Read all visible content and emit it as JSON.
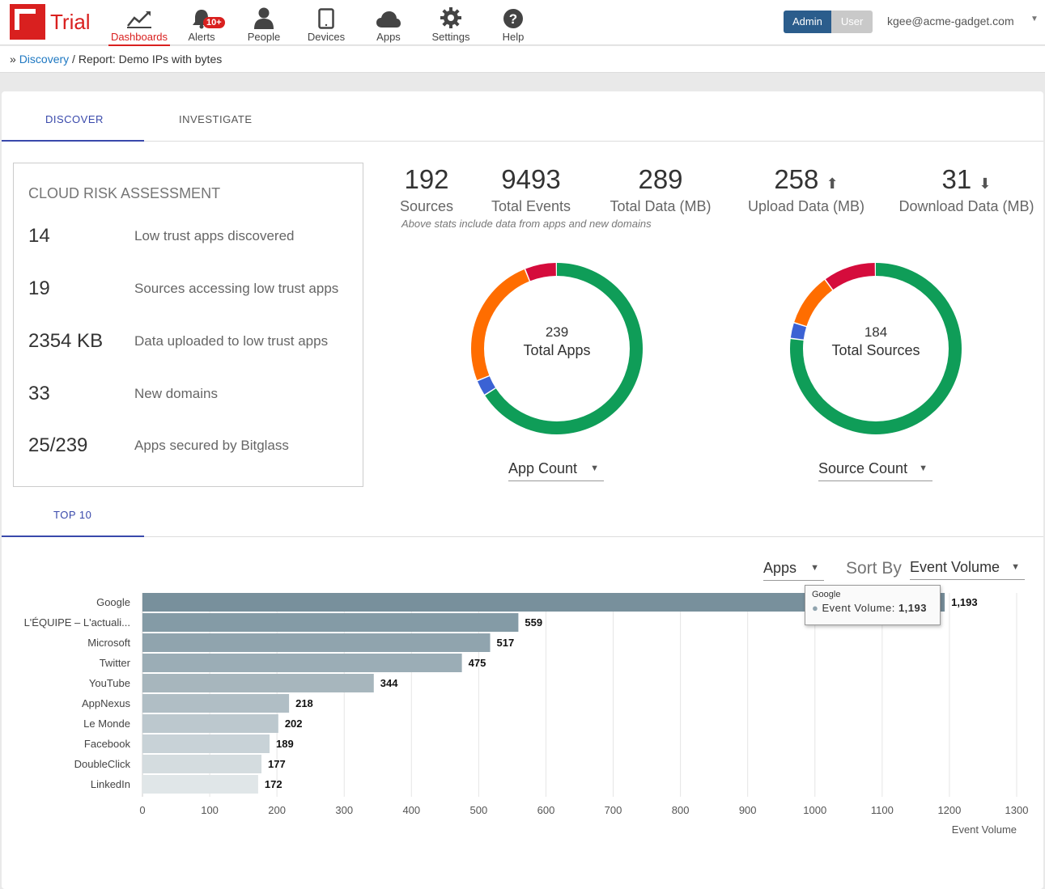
{
  "app": {
    "logo_text": "Trial"
  },
  "nav": {
    "items": [
      {
        "label": "Dashboards",
        "icon": "chart-line-icon"
      },
      {
        "label": "Alerts",
        "icon": "bell-icon",
        "badge": "10+"
      },
      {
        "label": "People",
        "icon": "person-icon"
      },
      {
        "label": "Devices",
        "icon": "tablet-icon"
      },
      {
        "label": "Apps",
        "icon": "cloud-icon"
      },
      {
        "label": "Settings",
        "icon": "gear-icon"
      },
      {
        "label": "Help",
        "icon": "help-icon"
      }
    ],
    "active": "Dashboards"
  },
  "header": {
    "role_admin": "Admin",
    "role_user": "User",
    "user_email": "kgee@acme-gadget.com"
  },
  "breadcrumb": {
    "marker": "»",
    "link": "Discovery",
    "separator": "/",
    "current": "Report: Demo IPs with bytes"
  },
  "tabs": {
    "discover": "DISCOVER",
    "investigate": "INVESTIGATE"
  },
  "risk": {
    "title": "CLOUD RISK ASSESSMENT",
    "rows": [
      {
        "value": "14",
        "label": "Low trust apps discovered"
      },
      {
        "value": "19",
        "label": "Sources accessing low trust apps"
      },
      {
        "value": "2354 KB",
        "label": "Data uploaded to low trust apps"
      },
      {
        "value": "33",
        "label": "New domains"
      },
      {
        "value": "25/239",
        "label": "Apps secured by Bitglass"
      }
    ]
  },
  "stats": [
    {
      "value": "192",
      "label": "Sources"
    },
    {
      "value": "9493",
      "label": "Total Events"
    },
    {
      "value": "289",
      "label": "Total Data (MB)"
    },
    {
      "value": "258",
      "label": "Upload Data (MB)",
      "icon": "upload-icon"
    },
    {
      "value": "31",
      "label": "Download Data (MB)",
      "icon": "download-icon"
    }
  ],
  "stats_note": "Above stats include data from apps and new domains",
  "donuts": [
    {
      "number": "239",
      "label": "Total Apps",
      "select": "App Count",
      "segments": [
        {
          "color": "#0f9d58",
          "fraction": 0.66
        },
        {
          "color": "#3b62d4",
          "fraction": 0.03
        },
        {
          "color": "#ff6d00",
          "fraction": 0.25
        },
        {
          "color": "#d50c3c",
          "fraction": 0.06
        }
      ]
    },
    {
      "number": "184",
      "label": "Total Sources",
      "select": "Source Count",
      "segments": [
        {
          "color": "#0f9d58",
          "fraction": 0.77
        },
        {
          "color": "#3b62d4",
          "fraction": 0.03
        },
        {
          "color": "#ff6d00",
          "fraction": 0.1
        },
        {
          "color": "#d50c3c",
          "fraction": 0.1
        }
      ]
    }
  ],
  "top10": {
    "tab": "TOP 10",
    "group_select": "Apps",
    "sort_label": "Sort By",
    "sort_select": "Event Volume"
  },
  "tooltip": {
    "title": "Google",
    "series": "Event Volume:",
    "value": "1,193"
  },
  "chart_data": {
    "type": "bar",
    "orientation": "horizontal",
    "categories": [
      "Google",
      "L'ÉQUIPE – L'actuali...",
      "Microsoft",
      "Twitter",
      "YouTube",
      "AppNexus",
      "Le Monde",
      "Facebook",
      "DoubleClick",
      "LinkedIn"
    ],
    "values": [
      1193,
      559,
      517,
      475,
      344,
      218,
      202,
      189,
      177,
      172
    ],
    "value_labels": [
      "1,193",
      "559",
      "517",
      "475",
      "344",
      "218",
      "202",
      "189",
      "177",
      "172"
    ],
    "xlabel": "Event Volume",
    "xlim": [
      0,
      1300
    ],
    "xticks": [
      0,
      100,
      200,
      300,
      400,
      500,
      600,
      700,
      800,
      900,
      1000,
      1100,
      1200,
      1300
    ],
    "grid": true,
    "colors": [
      "#78909c",
      "#849ba6",
      "#90a4ae",
      "#9badb6",
      "#a7b6bd",
      "#b0bec5",
      "#bcc8ce",
      "#c8d2d7",
      "#d4dcdf",
      "#e0e6e8"
    ]
  }
}
